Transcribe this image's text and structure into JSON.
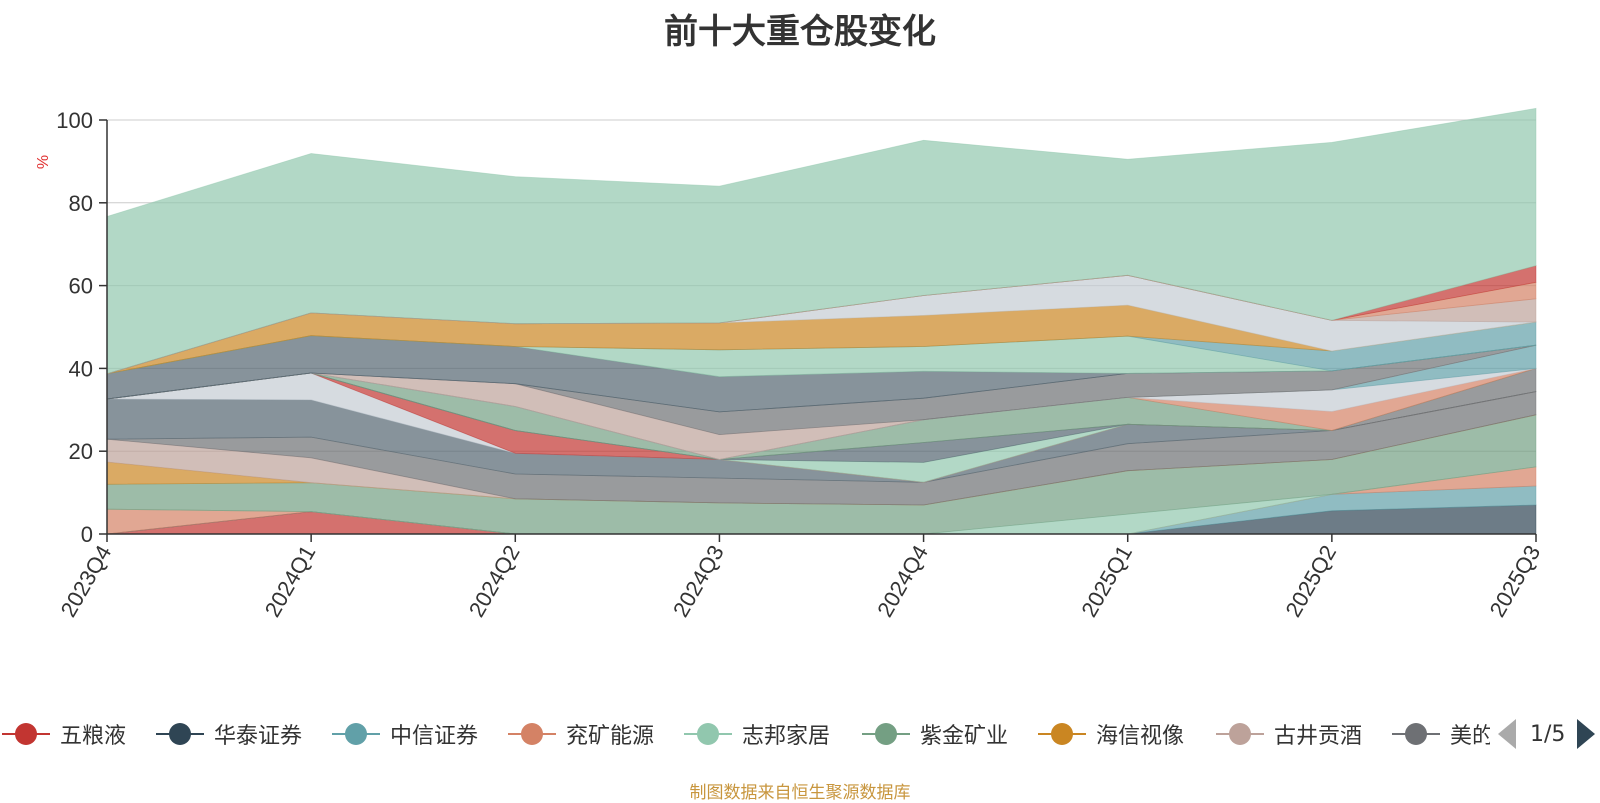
{
  "title": "前十大重仓股变化",
  "footer": "制图数据来自恒生聚源数据库",
  "pager": {
    "text": "1/5"
  },
  "colors": {
    "ordered": [
      "#c23531",
      "#2f4554",
      "#61a0a8",
      "#d48265",
      "#91c7ae",
      "#749f83",
      "#ca8622",
      "#bda29a",
      "#6e7074",
      "#546570",
      "#c4ccd3",
      "#91c7ae"
    ]
  },
  "legend": [
    {
      "name": "五粮液",
      "color": "#c23531"
    },
    {
      "name": "华泰证券",
      "color": "#2f4554"
    },
    {
      "name": "中信证券",
      "color": "#61a0a8"
    },
    {
      "name": "兖矿能源",
      "color": "#d48265"
    },
    {
      "name": "志邦家居",
      "color": "#91c7ae"
    },
    {
      "name": "紫金矿业",
      "color": "#749f83"
    },
    {
      "name": "海信视像",
      "color": "#ca8622"
    },
    {
      "name": "古井贡酒",
      "color": "#bda29a"
    },
    {
      "name": "美的集团",
      "color": "#6e7074"
    }
  ],
  "chart_data": {
    "type": "area",
    "stacked": true,
    "title": "前十大重仓股变化",
    "ylabel": "%",
    "ylim": [
      0,
      100
    ],
    "yticks": [
      0,
      20,
      40,
      60,
      80,
      100
    ],
    "categories": [
      "2023Q4",
      "2024Q1",
      "2024Q2",
      "2024Q3",
      "2024Q4",
      "2025Q1",
      "2025Q2",
      "2025Q3"
    ],
    "grid": true,
    "series": [
      {
        "name": "五粮液",
        "color": "#c23531",
        "values": [
          0.0,
          5.4,
          0.0,
          0.0,
          0.0,
          0.0,
          0.0,
          0.0
        ]
      },
      {
        "name": "华泰证券",
        "color": "#2f4554",
        "values": [
          0.0,
          0.0,
          0.0,
          0.0,
          0.0,
          0.0,
          5.6,
          7.0
        ]
      },
      {
        "name": "中信证券",
        "color": "#61a0a8",
        "values": [
          0.0,
          0.0,
          0.0,
          0.0,
          0.0,
          0.0,
          4.0,
          4.6
        ]
      },
      {
        "name": "兖矿能源",
        "color": "#d48265",
        "values": [
          6.0,
          0.0,
          0.0,
          0.0,
          0.0,
          0.0,
          0.0,
          4.6
        ]
      },
      {
        "name": "志邦家居",
        "color": "#91c7ae",
        "values": [
          0.0,
          0.0,
          0.0,
          0.0,
          0.0,
          4.8,
          0.0,
          0.0
        ]
      },
      {
        "name": "紫金矿业",
        "color": "#749f83",
        "values": [
          6.0,
          7.0,
          8.5,
          7.5,
          7.0,
          10.5,
          8.4,
          12.6
        ]
      },
      {
        "name": "海信视像",
        "color": "#ca8622",
        "values": [
          5.4,
          0.0,
          0.0,
          0.0,
          0.0,
          0.0,
          0.0,
          0.0
        ]
      },
      {
        "name": "古井贡酒",
        "color": "#bda29a",
        "values": [
          5.5,
          6.0,
          0.0,
          0.0,
          0.0,
          0.0,
          0.0,
          0.0
        ]
      },
      {
        "name": "美的集团",
        "color": "#6e7074",
        "values": [
          0.0,
          5.0,
          6.0,
          6.0,
          5.5,
          6.5,
          7.0,
          5.6
        ]
      },
      {
        "name": "",
        "color": "#546570",
        "values": [
          9.7,
          9.0,
          5.0,
          4.5,
          0.0,
          4.7,
          0.0,
          0.0
        ]
      },
      {
        "name": "",
        "color": "#c4ccd3",
        "values": [
          0.0,
          6.5,
          0.0,
          0.0,
          0.0,
          0.0,
          0.0,
          0.0
        ]
      },
      {
        "name": "",
        "color": "#c23531",
        "values": [
          0.0,
          0.0,
          5.5,
          0.0,
          0.0,
          0.0,
          0.0,
          0.0
        ]
      },
      {
        "name": "",
        "color": "#91c7ae",
        "values": [
          0.0,
          0.0,
          0.0,
          0.0,
          4.8,
          0.0,
          0.0,
          0.0
        ]
      },
      {
        "name": "",
        "color": "#546570",
        "values": [
          0.0,
          0.0,
          0.0,
          0.0,
          4.8,
          0.0,
          0.0,
          0.0
        ]
      },
      {
        "name": "",
        "color": "#6e7074",
        "values": [
          0.0,
          0.0,
          0.0,
          0.0,
          0.0,
          0.0,
          0.0,
          5.6
        ]
      },
      {
        "name": "",
        "color": "#749f83",
        "values": [
          0.0,
          0.0,
          5.8,
          0.0,
          5.5,
          6.5,
          0.0,
          0.0
        ]
      },
      {
        "name": "",
        "color": "#d48265",
        "values": [
          0.0,
          0.0,
          0.0,
          0.0,
          0.0,
          0.0,
          4.6,
          0.0
        ]
      },
      {
        "name": "",
        "color": "#c4ccd3",
        "values": [
          0.0,
          0.0,
          0.0,
          0.0,
          0.0,
          0.0,
          5.2,
          0.0
        ]
      },
      {
        "name": "",
        "color": "#61a0a8",
        "values": [
          0.0,
          0.0,
          0.0,
          0.0,
          0.0,
          0.0,
          0.0,
          5.6
        ]
      },
      {
        "name": "",
        "color": "#bda29a",
        "values": [
          0.0,
          0.0,
          5.5,
          6.0,
          0.0,
          0.0,
          0.0,
          0.0
        ]
      },
      {
        "name": "",
        "color": "#6e7074",
        "values": [
          0.0,
          0.0,
          0.0,
          5.5,
          5.2,
          5.8,
          4.6,
          0.0
        ]
      },
      {
        "name": "",
        "color": "#546570",
        "values": [
          0.0,
          0.0,
          0.0,
          0.0,
          0.0,
          0.0,
          0.0,
          0.0
        ]
      },
      {
        "name": "",
        "color": "#546570",
        "values": [
          6.1,
          9.0,
          9.0,
          8.5,
          6.5,
          0.0,
          0.0,
          0.0
        ]
      },
      {
        "name": "",
        "color": "#91c7ae",
        "values": [
          0.0,
          0.0,
          0.0,
          6.5,
          6.0,
          9.0,
          0.0,
          0.0
        ]
      },
      {
        "name": "",
        "color": "#61a0a8",
        "values": [
          0.0,
          0.0,
          0.0,
          0.0,
          0.0,
          0.0,
          4.8,
          5.6
        ]
      },
      {
        "name": "",
        "color": "#ca8622",
        "values": [
          0.0,
          5.5,
          5.5,
          6.5,
          7.5,
          7.5,
          0.0,
          0.0
        ]
      },
      {
        "name": "",
        "color": "#c4ccd3",
        "values": [
          0.0,
          0.0,
          0.0,
          0.0,
          4.8,
          7.2,
          7.4,
          0.0
        ]
      },
      {
        "name": "",
        "color": "#bda29a",
        "values": [
          0.0,
          0.0,
          0.0,
          0.0,
          0.0,
          0.0,
          0.0,
          5.6
        ]
      },
      {
        "name": "",
        "color": "#d48265",
        "values": [
          0.0,
          0.0,
          0.0,
          0.0,
          0.0,
          0.0,
          0.0,
          4.0
        ]
      },
      {
        "name": "",
        "color": "#c23531",
        "values": [
          0.0,
          0.0,
          0.0,
          0.0,
          0.0,
          0.0,
          0.0,
          4.0
        ]
      },
      {
        "name": "",
        "color": "#91c7ae",
        "values": [
          38.0,
          38.5,
          35.5,
          33.0,
          37.5,
          28.0,
          43.0,
          38.0
        ]
      }
    ]
  }
}
